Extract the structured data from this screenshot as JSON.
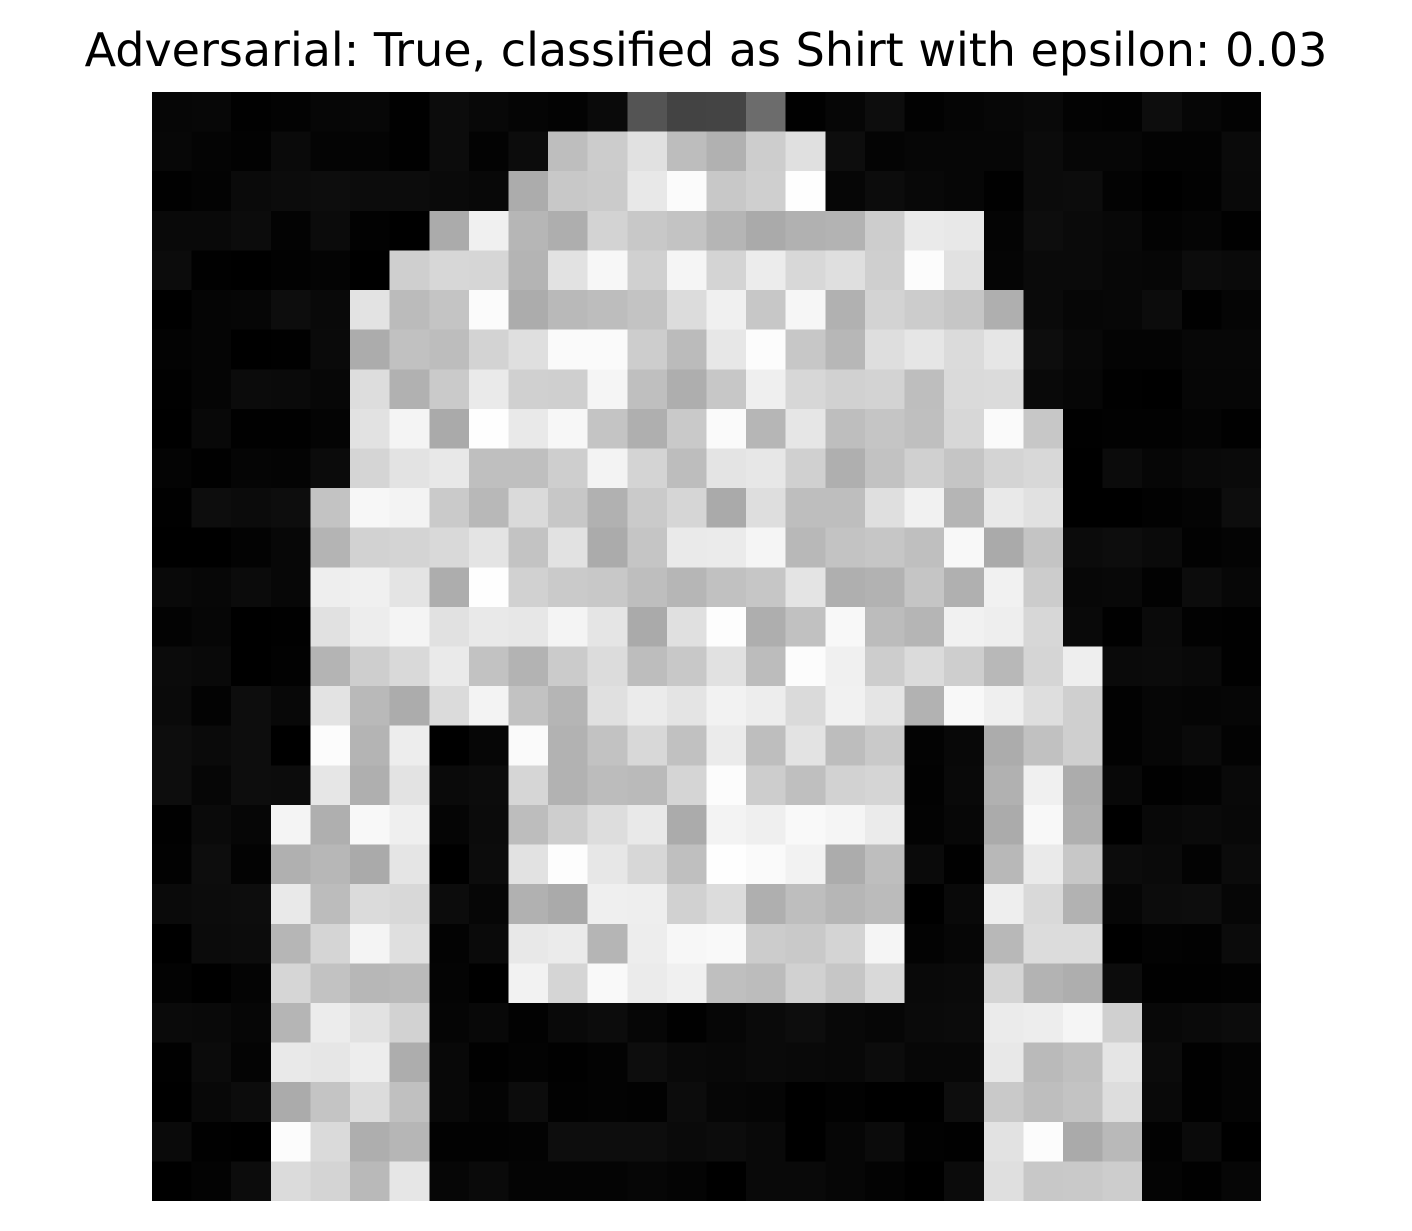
{
  "figure": {
    "title": "Adversarial: True, classified as Shirt with epsilon: 0.03",
    "image_description": "28x28 grayscale pixel image of a long-sleeve shirt / top, white garment on a black background",
    "colormap": "gray"
  }
}
